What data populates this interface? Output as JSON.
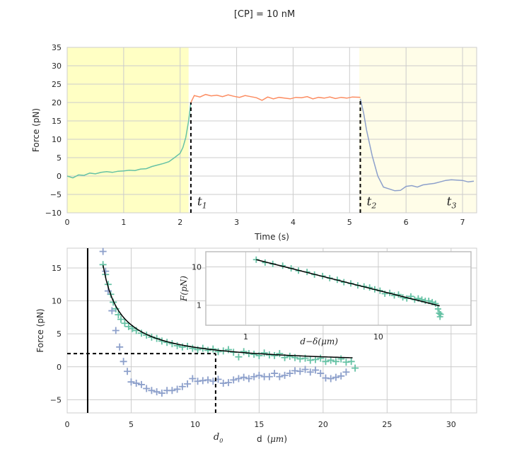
{
  "figure": {
    "suptitle": "[CP] = 10 nM"
  },
  "colors": {
    "green": "#66c2a5",
    "orange": "#fc8d62",
    "blue": "#8da0cb",
    "shade_yellow": "#ffffc4",
    "shade_light_yellow": "#fffde8",
    "grid": "#cccccc",
    "black": "#000000"
  },
  "chart_data": [
    {
      "type": "line",
      "xlabel": "Time (s)",
      "ylabel": "Force (pN)",
      "xlim": [
        0,
        7.25
      ],
      "ylim": [
        -10,
        35
      ],
      "xticks": [
        "0",
        "1",
        "2",
        "3",
        "4",
        "5",
        "6",
        "7"
      ],
      "yticks": [
        "−10",
        "−5",
        "0",
        "5",
        "10",
        "15",
        "20",
        "25",
        "30",
        "35"
      ],
      "grid": true,
      "shaded_regions": [
        {
          "x": [
            0,
            2.15
          ],
          "color": "shade_yellow"
        },
        {
          "x": [
            5.17,
            7.25
          ],
          "color": "shade_light_yellow"
        }
      ],
      "vlines_dashed": [
        {
          "x": 2.19,
          "y": [
            -10,
            20
          ],
          "label": "t",
          "sub": "1"
        },
        {
          "x": 5.19,
          "y": [
            -10,
            21
          ],
          "label": "t",
          "sub": "2"
        }
      ],
      "annotations": [
        {
          "x": 6.72,
          "y": -7,
          "label": "t",
          "sub": "3"
        }
      ],
      "series": [
        {
          "color": "green",
          "x": [
            0.0,
            0.1,
            0.2,
            0.3,
            0.4,
            0.5,
            0.6,
            0.7,
            0.8,
            0.9,
            1.0,
            1.1,
            1.2,
            1.3,
            1.4,
            1.5,
            1.6,
            1.7,
            1.8,
            1.9,
            2.0,
            2.05,
            2.1,
            2.15,
            2.19
          ],
          "values": [
            0.0,
            -0.5,
            0.3,
            0.2,
            0.8,
            0.6,
            1.0,
            1.2,
            1.0,
            1.3,
            1.4,
            1.6,
            1.5,
            1.9,
            2.0,
            2.6,
            3.0,
            3.4,
            3.9,
            5.0,
            6.2,
            7.8,
            10.5,
            15.0,
            20.0
          ]
        },
        {
          "color": "orange",
          "x": [
            2.19,
            2.25,
            2.35,
            2.45,
            2.55,
            2.65,
            2.75,
            2.85,
            2.95,
            3.05,
            3.15,
            3.25,
            3.35,
            3.45,
            3.55,
            3.65,
            3.75,
            3.85,
            3.95,
            4.05,
            4.15,
            4.25,
            4.35,
            4.45,
            4.55,
            4.65,
            4.75,
            4.85,
            4.95,
            5.05,
            5.19
          ],
          "values": [
            20.0,
            21.9,
            21.5,
            22.2,
            21.8,
            22.0,
            21.6,
            22.1,
            21.7,
            21.4,
            21.9,
            21.6,
            21.3,
            20.6,
            21.5,
            21.0,
            21.4,
            21.2,
            21.0,
            21.4,
            21.3,
            21.6,
            21.0,
            21.4,
            21.2,
            21.5,
            21.1,
            21.4,
            21.2,
            21.5,
            21.4
          ]
        },
        {
          "color": "blue",
          "x": [
            5.19,
            5.25,
            5.3,
            5.4,
            5.5,
            5.6,
            5.7,
            5.8,
            5.9,
            6.0,
            6.1,
            6.2,
            6.3,
            6.4,
            6.5,
            6.6,
            6.7,
            6.8,
            6.9,
            7.0,
            7.1,
            7.2
          ],
          "values": [
            21.0,
            17.0,
            12.5,
            5.5,
            0.0,
            -3.0,
            -3.5,
            -4.0,
            -3.9,
            -2.8,
            -2.6,
            -3.0,
            -2.4,
            -2.2,
            -2.0,
            -1.6,
            -1.2,
            -1.0,
            -1.1,
            -1.2,
            -1.6,
            -1.4
          ]
        }
      ]
    },
    {
      "type": "scatter",
      "xlabel": "d",
      "xlabel_unit": "μm",
      "ylabel": "Force (pN)",
      "xlim": [
        0,
        32
      ],
      "ylim": [
        -7,
        18
      ],
      "xticks": [
        "0",
        "5",
        "10",
        "15",
        "20",
        "25",
        "30"
      ],
      "yticks": [
        "−5",
        "0",
        "5",
        "10",
        "15"
      ],
      "grid": true,
      "marker": "+",
      "vline_solid_x": 1.6,
      "dashed_h": {
        "y": 2.0,
        "x": [
          0,
          11.6
        ]
      },
      "dashed_v": {
        "x": 11.6,
        "y": [
          -7,
          2.0
        ]
      },
      "d0_label": {
        "text": "d",
        "sub": "0",
        "x": 11.6
      },
      "fit_curve": {
        "x_range": [
          2.8,
          22.3
        ],
        "x_shift": 1.6,
        "amplitude": 18.0,
        "exponent": 0.85,
        "color": "black"
      },
      "series": [
        {
          "color": "green",
          "x": [
            2.8,
            3.0,
            3.2,
            3.4,
            3.6,
            3.8,
            4.0,
            4.2,
            4.5,
            4.8,
            5.1,
            5.4,
            5.8,
            6.2,
            6.6,
            7.0,
            7.4,
            7.8,
            8.2,
            8.6,
            9.0,
            9.4,
            9.8,
            10.2,
            10.6,
            11.0,
            11.4,
            11.8,
            12.2,
            12.6,
            13.0,
            13.4,
            13.8,
            14.2,
            14.6,
            15.0,
            15.4,
            15.8,
            16.2,
            16.6,
            17.0,
            17.4,
            17.8,
            18.2,
            18.6,
            19.0,
            19.4,
            19.8,
            20.2,
            20.6,
            21.0,
            21.4,
            21.8,
            22.2,
            22.5
          ],
          "values": [
            15.5,
            14.0,
            12.5,
            11.0,
            9.8,
            8.8,
            7.9,
            7.2,
            6.6,
            6.1,
            5.8,
            5.5,
            5.1,
            4.8,
            4.5,
            4.3,
            3.9,
            3.7,
            3.5,
            3.2,
            3.0,
            3.1,
            2.8,
            2.6,
            2.8,
            2.5,
            2.7,
            2.3,
            2.4,
            2.6,
            2.2,
            1.5,
            2.3,
            2.0,
            1.9,
            1.7,
            2.1,
            1.8,
            1.7,
            2.0,
            1.4,
            1.6,
            1.4,
            1.2,
            1.3,
            1.0,
            1.1,
            1.3,
            0.8,
            1.0,
            0.8,
            1.2,
            0.7,
            0.8,
            -0.2
          ]
        },
        {
          "color": "blue",
          "x": [
            2.8,
            3.0,
            3.2,
            3.5,
            3.8,
            4.1,
            4.4,
            4.7,
            5.0,
            5.4,
            5.8,
            6.2,
            6.6,
            7.0,
            7.4,
            7.8,
            8.2,
            8.6,
            9.0,
            9.4,
            9.8,
            10.2,
            10.6,
            11.0,
            11.4,
            11.8,
            12.2,
            12.6,
            13.0,
            13.4,
            13.8,
            14.2,
            14.6,
            15.0,
            15.4,
            15.8,
            16.2,
            16.6,
            17.0,
            17.4,
            17.8,
            18.2,
            18.6,
            19.0,
            19.4,
            19.8,
            20.2,
            20.6,
            21.0,
            21.4,
            21.8
          ],
          "values": [
            17.5,
            14.5,
            11.5,
            8.5,
            5.5,
            3.0,
            0.8,
            -0.7,
            -2.3,
            -2.5,
            -2.7,
            -3.3,
            -3.6,
            -3.8,
            -4.0,
            -3.6,
            -3.6,
            -3.4,
            -3.0,
            -2.6,
            -1.8,
            -2.2,
            -2.1,
            -2.0,
            -2.2,
            -1.9,
            -2.5,
            -2.4,
            -2.0,
            -1.8,
            -1.6,
            -1.8,
            -1.5,
            -1.3,
            -1.5,
            -1.5,
            -1.0,
            -1.5,
            -1.3,
            -1.0,
            -0.6,
            -0.7,
            -0.4,
            -0.8,
            -0.5,
            -1.0,
            -1.7,
            -1.8,
            -1.6,
            -1.4,
            -0.8
          ]
        }
      ]
    },
    {
      "type": "scatter",
      "scale": "log-log",
      "xlabel": "d−δ",
      "xlabel_unit": "μm",
      "ylabel": "F(pN)",
      "xlim": [
        0.5,
        50
      ],
      "ylim": [
        0.3,
        25
      ],
      "xticks": [
        {
          "v": 1,
          "label": "1"
        },
        {
          "v": 10,
          "label": "10"
        }
      ],
      "yticks": [
        {
          "v": 1,
          "label": "1"
        },
        {
          "v": 10,
          "label": "10"
        }
      ],
      "grid": true,
      "marker": "+",
      "fit_line": {
        "x": [
          1.2,
          29.0
        ],
        "y": [
          15.5,
          0.96
        ],
        "color": "black"
      },
      "series": [
        {
          "color": "green",
          "x": [
            1.2,
            1.4,
            1.6,
            1.9,
            2.2,
            2.5,
            2.9,
            3.3,
            3.8,
            4.3,
            4.9,
            5.5,
            6.2,
            7.0,
            7.8,
            8.6,
            9.4,
            10.3,
            11.2,
            12.2,
            13.2,
            14.2,
            15.3,
            16.4,
            17.6,
            18.8,
            20.0,
            21.3,
            22.6,
            24.0,
            25.5,
            27.0,
            28.2,
            28.8,
            29.2,
            29.5
          ],
          "values": [
            15.5,
            13.0,
            12.0,
            10.8,
            9.2,
            8.0,
            7.4,
            6.3,
            5.8,
            5.1,
            4.6,
            4.0,
            3.7,
            3.3,
            3.1,
            2.9,
            2.6,
            2.4,
            2.0,
            2.1,
            1.8,
            1.9,
            1.6,
            1.5,
            1.7,
            1.4,
            1.5,
            1.4,
            1.3,
            1.3,
            1.2,
            1.1,
            0.8,
            0.62,
            0.5,
            0.58
          ]
        }
      ]
    }
  ]
}
